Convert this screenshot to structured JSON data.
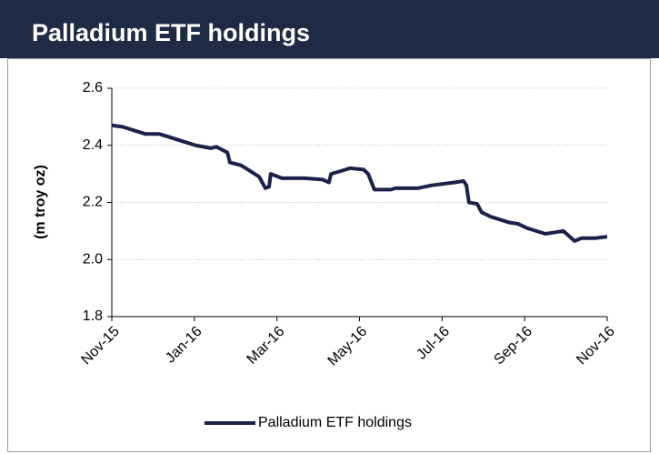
{
  "chart_data": {
    "type": "line",
    "title": "Palladium ETF holdings",
    "ylabel": "(m troy oz)",
    "x": [
      0,
      0.26,
      0.59,
      0.81,
      1.14,
      1.37,
      1.7,
      2.03,
      2.4,
      2.53,
      2.8,
      2.86,
      3.13,
      3.35,
      3.57,
      3.72,
      3.81,
      3.85,
      4.12,
      4.67,
      5.11,
      5.26,
      5.31,
      5.55,
      5.77,
      6.1,
      6.21,
      6.36,
      6.76,
      6.87,
      7.42,
      7.75,
      8.3,
      8.52,
      8.59,
      8.65,
      8.85,
      8.96,
      9.18,
      9.4,
      9.62,
      9.84,
      10.06,
      10.28,
      10.5,
      10.72,
      10.94,
      11.21,
      11.38,
      11.71,
      12
    ],
    "series": [
      {
        "name": "Palladium ETF holdings",
        "color": "#1a2248",
        "values": [
          2.47,
          2.465,
          2.45,
          2.44,
          2.44,
          2.43,
          2.415,
          2.4,
          2.39,
          2.395,
          2.375,
          2.34,
          2.33,
          2.31,
          2.29,
          2.25,
          2.255,
          2.3,
          2.285,
          2.285,
          2.28,
          2.27,
          2.3,
          2.31,
          2.32,
          2.315,
          2.3,
          2.245,
          2.245,
          2.25,
          2.25,
          2.26,
          2.27,
          2.275,
          2.26,
          2.2,
          2.195,
          2.165,
          2.15,
          2.14,
          2.13,
          2.125,
          2.11,
          2.1,
          2.09,
          2.095,
          2.1,
          2.065,
          2.075,
          2.075,
          2.08
        ]
      }
    ],
    "xlim": [
      0,
      12
    ],
    "xticks": [
      {
        "value": 0,
        "label": "Nov-15"
      },
      {
        "value": 2,
        "label": "Jan-16"
      },
      {
        "value": 4,
        "label": "Mar-16"
      },
      {
        "value": 6,
        "label": "May-16"
      },
      {
        "value": 8,
        "label": "Jul-16"
      },
      {
        "value": 10,
        "label": "Sep-16"
      },
      {
        "value": 12,
        "label": "Nov-16"
      }
    ],
    "ylim": [
      1.8,
      2.6
    ],
    "yticks": [
      1.8,
      {
        "value": 2,
        "label": "2.0"
      },
      2.2,
      2.4,
      2.6
    ],
    "grid": true,
    "legend": "bottom"
  }
}
